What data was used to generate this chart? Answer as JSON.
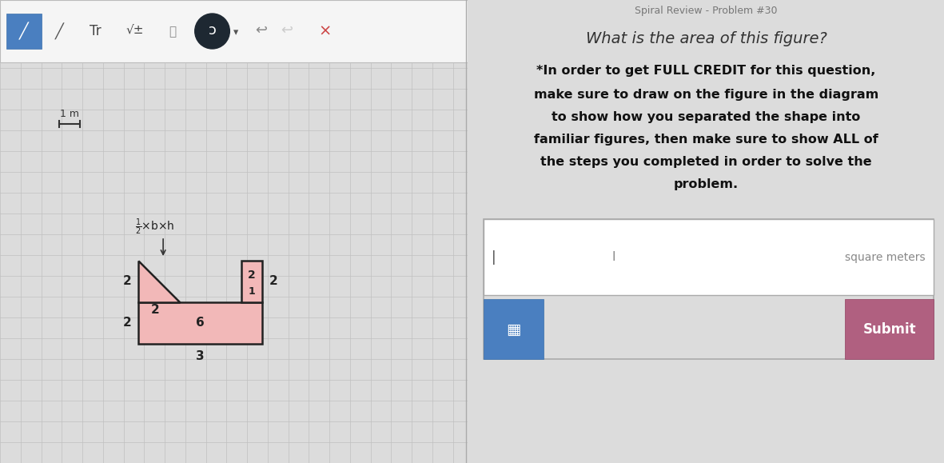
{
  "bg_color": "#dcdcdc",
  "panel_bg": "#dcdcdc",
  "title": "Spiral Review - Problem #30",
  "question": "What is the area of this figure?",
  "instr1": "*In order to get FULL CREDIT for this question,",
  "instr2": "make sure to draw on the figure in the diagram",
  "instr3": "to show how you separated the shape into",
  "instr4": "familiar figures, then make sure to show ALL of",
  "instr5": "the steps you completed in order to solve the",
  "instr6": "problem.",
  "square_meters_label": "square meters",
  "submit_label": "Submit",
  "submit_btn_color": "#b06080",
  "keyboard_btn_color": "#4a7fc0",
  "grid_color": "#c0c0c0",
  "shape_fill": "#f2b8b8",
  "shape_edge": "#222222",
  "label_color": "#222222",
  "toolbar_bg": "#f5f5f5",
  "toolbar_border": "#bbbbbb",
  "input_box_color": "#ffffff",
  "input_border": "#aaaaaa",
  "divider_color": "#aaaaaa"
}
